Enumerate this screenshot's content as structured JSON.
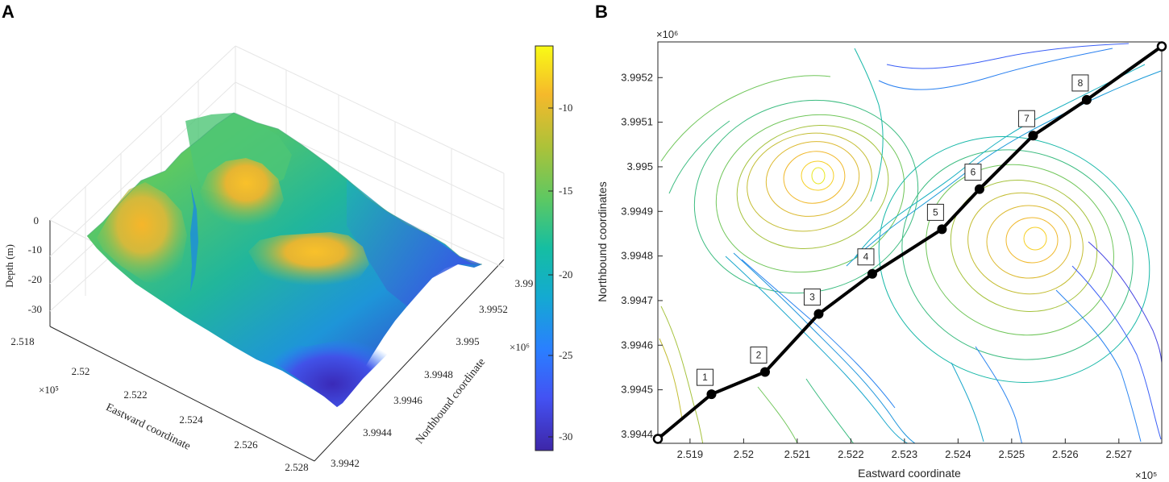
{
  "chart_data": [
    {
      "panel": "A",
      "type": "surface",
      "title": "",
      "xlabel": "Eastward coordinate",
      "ylabel": "Northbound coordinate",
      "zlabel": "Depth (m)",
      "x_ticks": [
        "2.518",
        "2.52",
        "2.522",
        "2.524",
        "2.526",
        "2.528"
      ],
      "x_exponent": "×10⁵",
      "y_ticks": [
        "3.9942",
        "3.9944",
        "3.9946",
        "3.9948",
        "3.995",
        "3.9952",
        "3.99"
      ],
      "y_exponent": "×10⁶",
      "z_ticks": [
        "0",
        "-10",
        "-20",
        "-30"
      ],
      "zlim": [
        -33,
        0
      ],
      "colorbar": {
        "ticks": [
          "-10",
          "-15",
          "-20",
          "-25",
          "-30"
        ],
        "range": [
          -31,
          -6
        ],
        "colors": [
          "#3e26a8",
          "#4352f3",
          "#2a7fff",
          "#14aad1",
          "#15bea2",
          "#5cc863",
          "#acc239",
          "#f5b92b",
          "#f9fb15"
        ]
      },
      "features": [
        {
          "name": "western ridge",
          "peak_depth": -12
        },
        {
          "name": "central-north peak",
          "peak_depth": -8
        },
        {
          "name": "central-south peak",
          "peak_depth": -8
        },
        {
          "name": "channel",
          "depth": -22
        },
        {
          "name": "southern deep",
          "depth": -31
        }
      ]
    },
    {
      "panel": "B",
      "type": "contour",
      "title": "",
      "xlabel": "Eastward coordinate",
      "ylabel": "Northbound coordinates",
      "x_exponent": "×10⁵",
      "y_exponent": "×10⁶",
      "xlim": [
        2.5184,
        2.5278
      ],
      "ylim": [
        3.99438,
        3.99528
      ],
      "x_ticks": [
        "2.519",
        "2.52",
        "2.521",
        "2.522",
        "2.523",
        "2.524",
        "2.525",
        "2.526",
        "2.527"
      ],
      "y_ticks": [
        "3.9944",
        "3.9945",
        "3.9946",
        "3.9947",
        "3.9948",
        "3.9949",
        "3.995",
        "3.9951",
        "3.9952"
      ],
      "hills": [
        {
          "name": "northwest hill",
          "x": 2.5214,
          "y": 3.99496
        },
        {
          "name": "southeast hill",
          "x": 2.5256,
          "y": 3.99483
        }
      ],
      "transect": {
        "start": {
          "x": 2.5184,
          "y": 3.99439
        },
        "end": {
          "x": 2.5278,
          "y": 3.99527
        },
        "points": [
          {
            "label": "1",
            "x": 2.5194,
            "y": 3.99449
          },
          {
            "label": "2",
            "x": 2.5204,
            "y": 3.99454
          },
          {
            "label": "3",
            "x": 2.5214,
            "y": 3.99467
          },
          {
            "label": "4",
            "x": 2.5224,
            "y": 3.99476
          },
          {
            "label": "5",
            "x": 2.5237,
            "y": 3.99486
          },
          {
            "label": "6",
            "x": 2.5244,
            "y": 3.99495
          },
          {
            "label": "7",
            "x": 2.5254,
            "y": 3.99507
          },
          {
            "label": "8",
            "x": 2.5264,
            "y": 3.99515
          }
        ]
      }
    }
  ]
}
